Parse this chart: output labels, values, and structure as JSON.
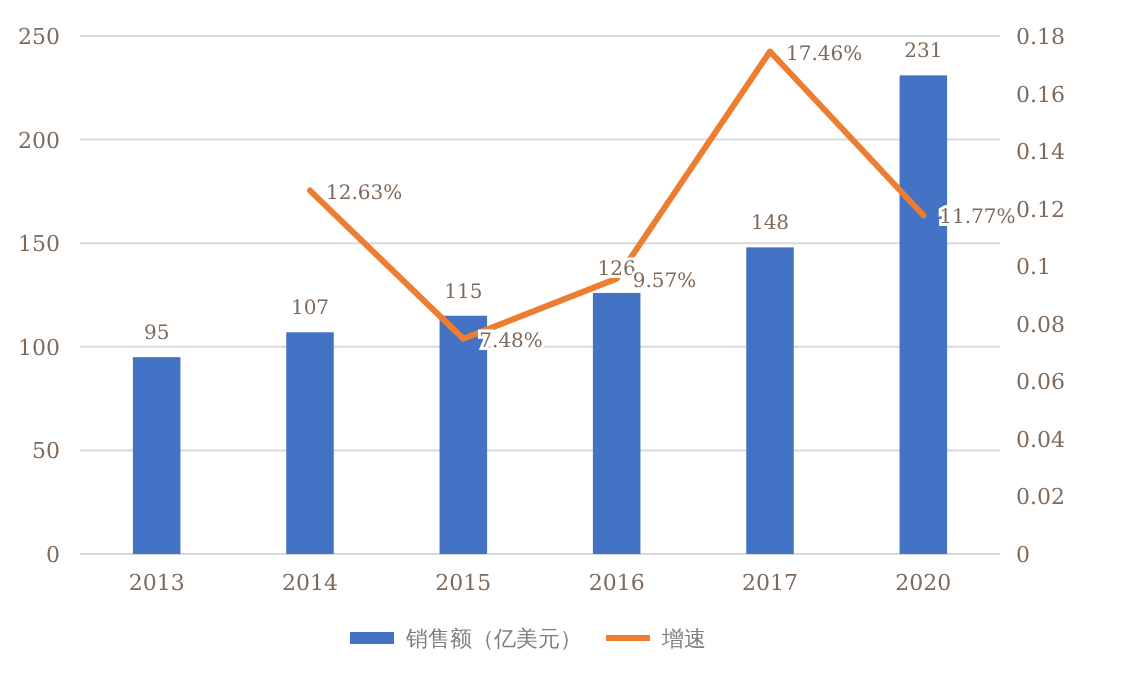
{
  "chart_data": {
    "type": "bar",
    "categories": [
      "2013",
      "2014",
      "2015",
      "2016",
      "2017",
      "2020"
    ],
    "series": [
      {
        "name": "销售额（亿美元）",
        "color": "#4472c4",
        "values": [
          95,
          107,
          115,
          126,
          148,
          231
        ],
        "value_labels": [
          "95",
          "107",
          "115",
          "126",
          "148",
          "231"
        ]
      },
      {
        "name": "增速",
        "type": "line",
        "axis": "y2",
        "color": "#ed7d31",
        "values": [
          null,
          0.1263,
          0.0748,
          0.0957,
          0.1746,
          0.1177
        ],
        "value_labels": [
          null,
          "12.63%",
          "7.48%",
          "9.57%",
          "17.46%",
          "11.77%"
        ]
      }
    ],
    "ylim": [
      0,
      250
    ],
    "yticks": [
      0,
      50,
      100,
      150,
      200,
      250
    ],
    "y2lim": [
      0,
      0.18
    ],
    "y2ticks": [
      0,
      0.02,
      0.04,
      0.06,
      0.08,
      0.1,
      0.12,
      0.14,
      0.16,
      0.18
    ],
    "grid": "y",
    "legend": "bottom",
    "marker": "none",
    "line_style": "solid"
  }
}
